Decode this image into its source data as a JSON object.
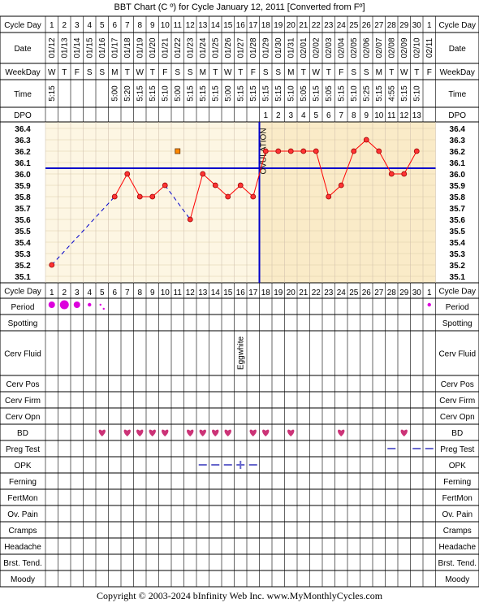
{
  "title": "BBT Chart (C º) for Cycle January 12, 2011  [Converted from Fº]",
  "row_labels": {
    "cycle_day": "Cycle Day",
    "date": "Date",
    "weekday": "WeekDay",
    "time": "Time",
    "dpo": "DPO",
    "period": "Period",
    "spotting": "Spotting",
    "cerv_fluid": "Cerv Fluid",
    "cerv_pos": "Cerv Pos",
    "cerv_firm": "Cerv Firm",
    "cerv_opn": "Cerv Opn",
    "bd": "BD",
    "preg_test": "Preg Test",
    "opk": "OPK",
    "ferning": "Ferning",
    "fertmon": "FertMon",
    "ov_pain": "Ov. Pain",
    "cramps": "Cramps",
    "headache": "Headache",
    "brst_tend": "Brst. Tend.",
    "moody": "Moody"
  },
  "ovulation_label": "OVULATION",
  "cerv_fluid_note": "Eggwhite",
  "copyright": "Copyright © 2003-2024 bInfinity Web Inc.    www.MyMonthlyCycles.com",
  "colors": {
    "line": "#ff0000",
    "dot": "#ff3333",
    "pre_bg": "#fdf6e3",
    "post_bg": "#faebc8",
    "coverline": "#0000cc",
    "ovulation": "#0000cc",
    "period": "#dd00dd",
    "heart": "#cc3377",
    "test": "#6666cc"
  },
  "chart_data": {
    "type": "line",
    "title": "BBT Chart (C º) for Cycle January 12, 2011  [Converted from Fº]",
    "ylim": [
      35.1,
      36.4
    ],
    "yticks": [
      "36.4",
      "36.3",
      "36.2",
      "36.1",
      "36.0",
      "35.9",
      "35.8",
      "35.7",
      "35.6",
      "35.5",
      "35.4",
      "35.3",
      "35.2",
      "35.1"
    ],
    "cycle_days": [
      "1",
      "2",
      "3",
      "4",
      "5",
      "6",
      "7",
      "8",
      "9",
      "10",
      "11",
      "12",
      "13",
      "14",
      "15",
      "16",
      "17",
      "18",
      "19",
      "20",
      "21",
      "22",
      "23",
      "24",
      "25",
      "26",
      "27",
      "28",
      "29",
      "30",
      "1"
    ],
    "dates": [
      "01/12",
      "01/13",
      "01/14",
      "01/15",
      "01/16",
      "01/17",
      "01/18",
      "01/19",
      "01/20",
      "01/21",
      "01/22",
      "01/23",
      "01/24",
      "01/25",
      "01/26",
      "01/27",
      "01/28",
      "01/29",
      "01/30",
      "01/31",
      "02/01",
      "02/02",
      "02/03",
      "02/04",
      "02/05",
      "02/06",
      "02/07",
      "02/08",
      "02/09",
      "02/10",
      "02/11"
    ],
    "weekdays": [
      "W",
      "T",
      "F",
      "S",
      "S",
      "M",
      "T",
      "W",
      "T",
      "F",
      "S",
      "S",
      "M",
      "T",
      "W",
      "T",
      "F",
      "S",
      "S",
      "M",
      "T",
      "W",
      "T",
      "F",
      "S",
      "S",
      "M",
      "T",
      "W",
      "T",
      "F"
    ],
    "times": [
      "5:15",
      "",
      "",
      "",
      "",
      "5:00",
      "5:20",
      "5:15",
      "5:15",
      "5:10",
      "5:00",
      "5:15",
      "5:15",
      "5:15",
      "5:00",
      "5:15",
      "5:15",
      "5:15",
      "5:15",
      "5:10",
      "5:05",
      "5:15",
      "5:05",
      "5:15",
      "5:10",
      "5:25",
      "5:15",
      "4:55",
      "5:15",
      "5:10",
      ""
    ],
    "dpo": [
      "",
      "",
      "",
      "",
      "",
      "",
      "",
      "",
      "",
      "",
      "",
      "",
      "",
      "",
      "",
      "",
      "",
      "1",
      "2",
      "3",
      "4",
      "5",
      "6",
      "7",
      "8",
      "9",
      "10",
      "11",
      "12",
      "13",
      ""
    ],
    "temps": [
      35.2,
      null,
      null,
      null,
      null,
      35.8,
      36.0,
      35.8,
      35.8,
      35.9,
      null,
      35.6,
      36.0,
      35.9,
      35.8,
      35.9,
      35.8,
      36.2,
      36.2,
      36.2,
      36.2,
      36.2,
      35.8,
      35.9,
      36.2,
      36.3,
      36.2,
      36.0,
      36.0,
      36.2,
      null
    ],
    "discarded": [
      {
        "day_index": 10,
        "temp": 36.2
      }
    ],
    "coverline": 36.05,
    "ovulation_day_index": 16,
    "period": [
      2,
      3,
      2,
      1,
      0.5,
      0,
      0,
      0,
      0,
      0,
      0,
      0,
      0,
      0,
      0,
      0,
      0,
      0,
      0,
      0,
      0,
      0,
      0,
      0,
      0,
      0,
      0,
      0,
      0,
      0,
      1
    ],
    "bd_days": [
      5,
      7,
      8,
      9,
      10,
      12,
      13,
      14,
      15,
      17,
      18,
      20,
      24,
      29
    ],
    "preg_test_days": [
      28,
      30,
      31
    ],
    "opk_days": [
      {
        "day": 13,
        "mark": "–"
      },
      {
        "day": 14,
        "mark": "–"
      },
      {
        "day": 15,
        "mark": "–"
      },
      {
        "day": 16,
        "mark": "+"
      },
      {
        "day": 17,
        "mark": "–"
      }
    ],
    "cerv_fluid_day": 16
  }
}
